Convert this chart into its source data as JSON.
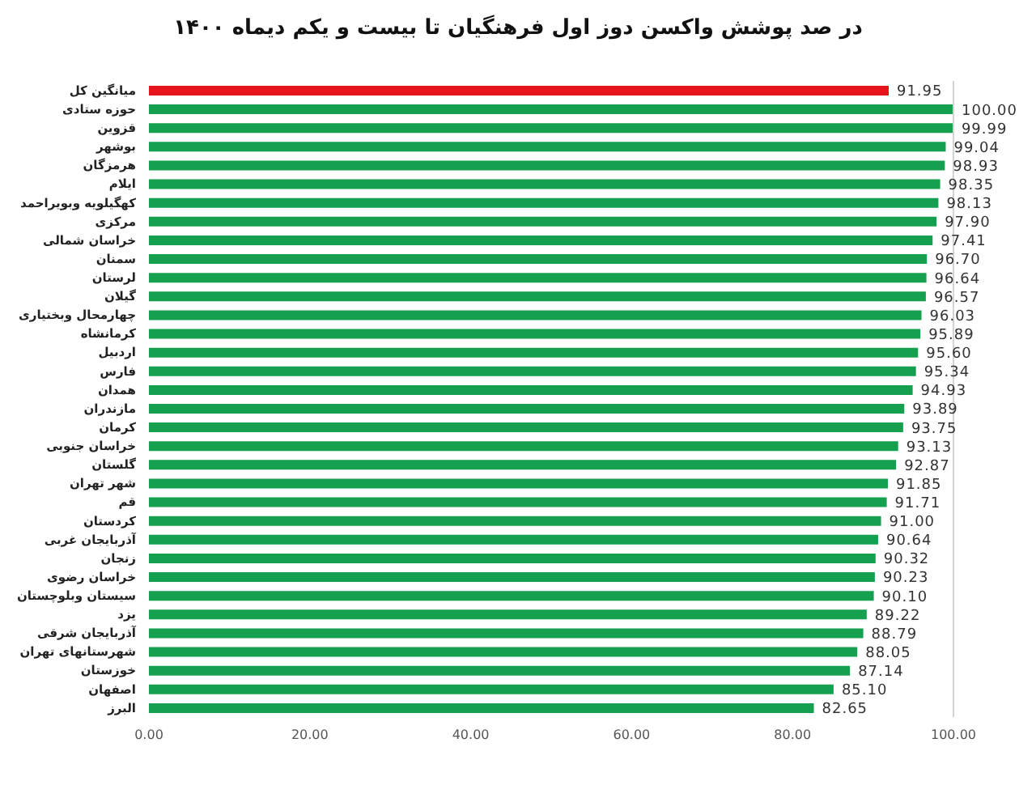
{
  "chart_data": {
    "type": "bar",
    "orientation": "horizontal",
    "title": "در صد پوشش واکسن دوز اول فرهنگیان تا بیست و یکم دیماه ۱۴۰۰",
    "categories": [
      "میانگین کل",
      "حوزه ستادی",
      "قزوین",
      "بوشهر",
      "هرمزگان",
      "ایلام",
      "کهگیلویه وبویراحمد",
      "مرکزی",
      "خراسان شمالی",
      "سمنان",
      "لرستان",
      "گیلان",
      "چهارمحال وبختیاری",
      "کرمانشاه",
      "اردبیل",
      "فارس",
      "همدان",
      "مازندران",
      "کرمان",
      "خراسان جنوبی",
      "گلستان",
      "شهر تهران",
      "قم",
      "کردستان",
      "آذربایجان غربی",
      "زنجان",
      "خراسان رضوی",
      "سیستان وبلوچستان",
      "یزد",
      "آذربایجان شرقی",
      "شهرستانهای تهران",
      "خوزستان",
      "اصفهان",
      "البرز"
    ],
    "values": [
      91.95,
      100,
      99.99,
      99.04,
      98.93,
      98.35,
      98.13,
      97.9,
      97.41,
      96.7,
      96.64,
      96.57,
      96.03,
      95.89,
      95.6,
      95.34,
      94.93,
      93.89,
      93.75,
      93.13,
      92.87,
      91.85,
      91.71,
      91,
      90.64,
      90.32,
      90.23,
      90.1,
      89.22,
      88.79,
      88.05,
      87.14,
      85.1,
      82.65
    ],
    "value_labels": [
      "91.95",
      "100.00",
      "99.99",
      "99.04",
      "98.93",
      "98.35",
      "98.13",
      "97.90",
      "97.41",
      "96.70",
      "96.64",
      "96.57",
      "96.03",
      "95.89",
      "95.60",
      "95.34",
      "94.93",
      "93.89",
      "93.75",
      "93.13",
      "92.87",
      "91.85",
      "91.71",
      "91.00",
      "90.64",
      "90.32",
      "90.23",
      "90.10",
      "89.22",
      "88.79",
      "88.05",
      "87.14",
      "85.10",
      "82.65"
    ],
    "colors": [
      "#e8141b",
      "#14a04e",
      "#14a04e",
      "#14a04e",
      "#14a04e",
      "#14a04e",
      "#14a04e",
      "#14a04e",
      "#14a04e",
      "#14a04e",
      "#14a04e",
      "#14a04e",
      "#14a04e",
      "#14a04e",
      "#14a04e",
      "#14a04e",
      "#14a04e",
      "#14a04e",
      "#14a04e",
      "#14a04e",
      "#14a04e",
      "#14a04e",
      "#14a04e",
      "#14a04e",
      "#14a04e",
      "#14a04e",
      "#14a04e",
      "#14a04e",
      "#14a04e",
      "#14a04e",
      "#14a04e",
      "#14a04e",
      "#14a04e",
      "#14a04e"
    ],
    "xlim": [
      0,
      100
    ],
    "xticks": [
      {
        "value": 0,
        "label": "0.00"
      },
      {
        "value": 20,
        "label": "20.00"
      },
      {
        "value": 40,
        "label": "40.00"
      },
      {
        "value": 60,
        "label": "60.00"
      },
      {
        "value": 80,
        "label": "80.00"
      },
      {
        "value": 100,
        "label": "100.00"
      }
    ]
  }
}
